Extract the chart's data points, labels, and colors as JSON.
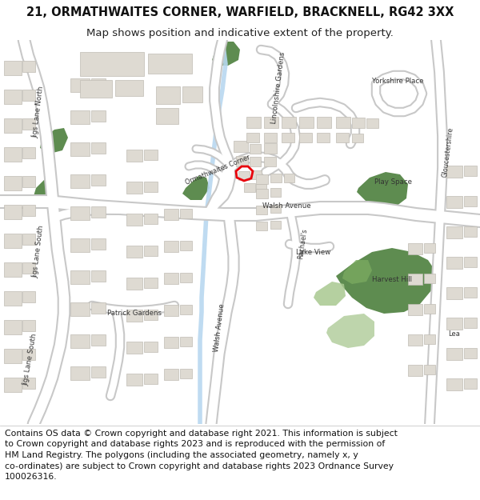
{
  "title_line1": "21, ORMATHWAITES CORNER, WARFIELD, BRACKNELL, RG42 3XX",
  "title_line2": "Map shows position and indicative extent of the property.",
  "title_fontsize": 10.5,
  "subtitle_fontsize": 9.5,
  "footer_lines": [
    "Contains OS data © Crown copyright and database right 2021. This information is subject",
    "to Crown copyright and database rights 2023 and is reproduced with the permission of",
    "HM Land Registry. The polygons (including the associated geometry, namely x, y",
    "co-ordinates) are subject to Crown copyright and database rights 2023 Ordnance Survey",
    "100026316."
  ],
  "footer_fontsize": 7.8,
  "map_bg": "#f2efe9",
  "road_color": "#ffffff",
  "road_edge": "#c8c8c8",
  "building_color": "#dedad2",
  "building_edge": "#c0bcb4",
  "green_dark": "#5e8c50",
  "green_mid": "#7aaa60",
  "green_light": "#a8c890",
  "water_color": "#b8d8f0",
  "red_plot": "#e8000a",
  "white": "#ffffff",
  "text_color": "#333333",
  "road_label_color": "#333333"
}
